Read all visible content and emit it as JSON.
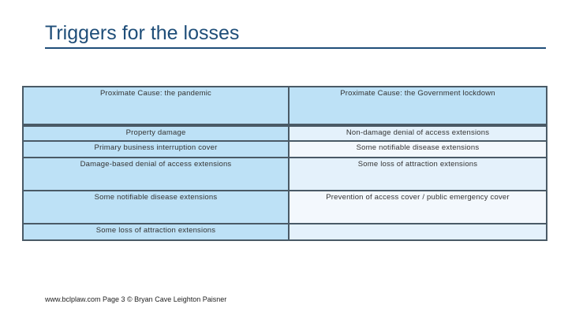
{
  "title": "Triggers for the losses",
  "table": {
    "headers": [
      "Proximate Cause: the pandemic",
      "Proximate Cause: the Government lockdown"
    ],
    "rows": [
      [
        "Property damage",
        "Non-damage denial of access extensions"
      ],
      [
        "Primary business interruption cover",
        "Some notifiable disease extensions"
      ],
      [
        "Damage-based denial of access extensions",
        "Some loss of attraction extensions"
      ],
      [
        "Some notifiable disease extensions",
        "Prevention of access cover / public emergency cover"
      ],
      [
        "Some loss of attraction extensions",
        ""
      ]
    ]
  },
  "footer": "www.bclplaw.com  Page 3  © Bryan Cave Leighton Paisner"
}
